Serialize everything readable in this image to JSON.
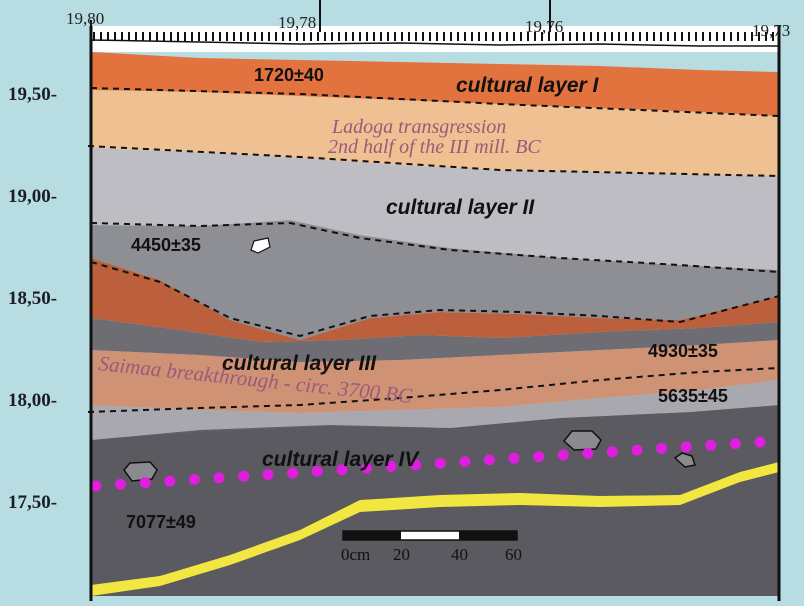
{
  "top_axis": {
    "labels": [
      "19,80",
      "19,78",
      "19,76",
      "19,73"
    ]
  },
  "left_axis": {
    "labels": [
      "19,50-",
      "19,00-",
      "18,50-",
      "18,00-",
      "17,50-"
    ]
  },
  "layers": {
    "cultural_layer_1": "cultural layer I",
    "ladoga_line1": "Ladoga transgression",
    "ladoga_line2": "2nd half of the III  mill. BC",
    "cultural_layer_2": "cultural layer II",
    "cultural_layer_3": "cultural layer III",
    "saimaa": "Saimaa breakthrough - circ. 3700 BC",
    "cultural_layer_4": "cultural layer IV"
  },
  "dates": {
    "d1720": "1720±40",
    "d4450": "4450±35",
    "d4930": "4930±35",
    "d5635": "5635±45",
    "d7077": "7077±49"
  },
  "scale_bar": {
    "labels": [
      "0cm",
      "20",
      "40",
      "60"
    ]
  },
  "colors": {
    "background": "#b7dde2",
    "orange_layer": "#e3733e",
    "tan_layer": "#efc092",
    "light_gray": "#bdbdc3",
    "mid_gray": "#8e8e95",
    "rust": "#bc5f3c",
    "dark_gray": "#5a5a60",
    "saimaa_band": "#d09275",
    "yellow_base": "#f2e640",
    "magenta_dots": "#e01ee0",
    "label_purple": "#9a5a7a"
  }
}
